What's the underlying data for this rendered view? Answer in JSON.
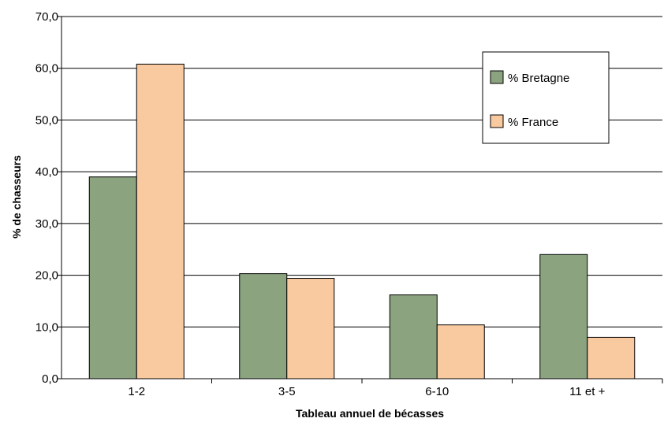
{
  "chart_data": {
    "type": "bar",
    "title": "",
    "xlabel": "Tableau annuel de bécasses",
    "ylabel": "% de chasseurs",
    "categories": [
      "1-2",
      "3-5",
      "6-10",
      "11 et +"
    ],
    "ylim": [
      0,
      70
    ],
    "yticks": [
      "0,0",
      "10,0",
      "20,0",
      "30,0",
      "40,0",
      "50,0",
      "60,0",
      "70,0"
    ],
    "grid": true,
    "legend_position": "top-right",
    "series": [
      {
        "name": "% Bretagne",
        "values": [
          39.0,
          20.3,
          16.2,
          24.0
        ],
        "color": "#8ba37f"
      },
      {
        "name": "% France",
        "values": [
          60.8,
          19.4,
          10.4,
          8.0
        ],
        "color": "#f9c9a0"
      }
    ]
  }
}
